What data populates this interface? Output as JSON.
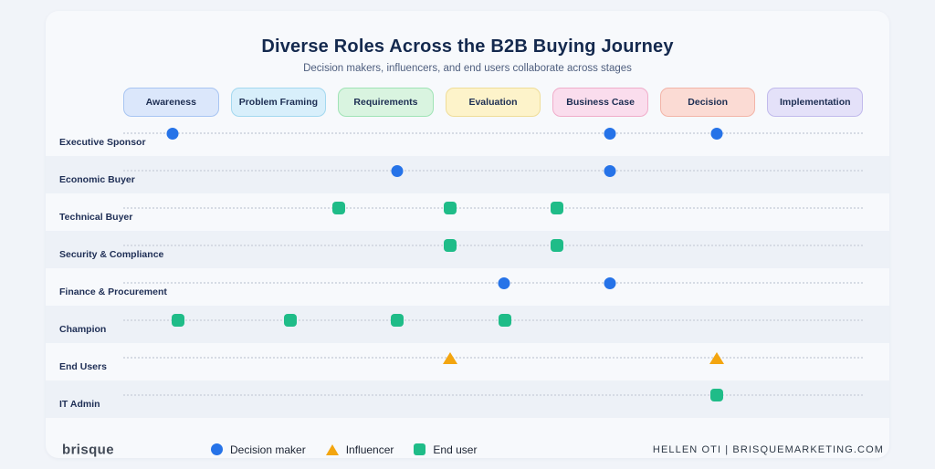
{
  "header": {
    "title": "Diverse Roles Across the B2B Buying Journey",
    "subtitle": "Decision makers, influencers, and end users collaborate across stages"
  },
  "stages": [
    {
      "label": "Awareness",
      "bg": "#dbe7fb",
      "border": "#a8c5f2"
    },
    {
      "label": "Problem Framing",
      "bg": "#d8effb",
      "border": "#a3d8ef"
    },
    {
      "label": "Requirements",
      "bg": "#d9f4e0",
      "border": "#a0e3b6"
    },
    {
      "label": "Evaluation",
      "bg": "#fdf3ca",
      "border": "#efdd98"
    },
    {
      "label": "Business Case",
      "bg": "#fadded",
      "border": "#f0adca"
    },
    {
      "label": "Decision",
      "bg": "#fbdbd4",
      "border": "#f2b4a8"
    },
    {
      "label": "Implementation",
      "bg": "#e4e1f9",
      "border": "#c1baec"
    }
  ],
  "marker_types": {
    "decision-maker": {
      "shape": "circle",
      "color": "#2673e8",
      "label": "Decision maker"
    },
    "influencer": {
      "shape": "triangle",
      "color": "#f3a50f",
      "label": "Influencer"
    },
    "end-user": {
      "shape": "square",
      "color": "#1fbc88",
      "label": "End user"
    }
  },
  "legend": [
    {
      "type": "decision-maker",
      "label": "Decision maker"
    },
    {
      "type": "influencer",
      "label": "Influencer"
    },
    {
      "type": "end-user",
      "label": "End user"
    }
  ],
  "footer": {
    "brand": "brisque",
    "credit": "HELLEN OTI | BRISQUEMARKETING.COM"
  },
  "chart_data": {
    "type": "scatter",
    "x_categories": [
      "Awareness",
      "Problem Framing",
      "Requirements",
      "Evaluation",
      "Business Case",
      "Decision",
      "Implementation"
    ],
    "y_categories": [
      "Executive Sponsor",
      "Economic Buyer",
      "Technical Buyer",
      "Security & Compliance",
      "Finance & Procurement",
      "Champion",
      "End Users",
      "IT Admin"
    ],
    "legend_position": "bottom",
    "grid": "dotted-row-lines",
    "rows": [
      {
        "label": "Executive Sponsor",
        "markers": [
          {
            "stage": "Awareness",
            "type": "decision-maker",
            "x_pct": 6.67
          },
          {
            "stage": "Business Case",
            "type": "decision-maker",
            "x_pct": 65.8
          },
          {
            "stage": "Decision",
            "type": "decision-maker",
            "x_pct": 80.25
          }
        ]
      },
      {
        "label": "Economic Buyer",
        "markers": [
          {
            "stage": "Requirements",
            "type": "decision-maker",
            "x_pct": 37.04
          },
          {
            "stage": "Business Case",
            "type": "decision-maker",
            "x_pct": 65.8
          }
        ]
      },
      {
        "label": "Technical Buyer",
        "markers": [
          {
            "stage": "Requirements",
            "type": "end-user",
            "x_pct": 29.14
          },
          {
            "stage": "Evaluation",
            "type": "end-user",
            "x_pct": 44.2
          },
          {
            "stage": "Business Case",
            "type": "end-user",
            "x_pct": 58.64
          }
        ]
      },
      {
        "label": "Security & Compliance",
        "markers": [
          {
            "stage": "Evaluation",
            "type": "end-user",
            "x_pct": 44.2
          },
          {
            "stage": "Business Case",
            "type": "end-user",
            "x_pct": 58.64
          }
        ]
      },
      {
        "label": "Finance & Procurement",
        "markers": [
          {
            "stage": "Evaluation",
            "type": "decision-maker",
            "x_pct": 51.48
          },
          {
            "stage": "Business Case",
            "type": "decision-maker",
            "x_pct": 65.8
          }
        ]
      },
      {
        "label": "Champion",
        "markers": [
          {
            "stage": "Awareness",
            "type": "end-user",
            "x_pct": 7.41
          },
          {
            "stage": "Problem Framing",
            "type": "end-user",
            "x_pct": 22.59
          },
          {
            "stage": "Requirements",
            "type": "end-user",
            "x_pct": 37.04
          },
          {
            "stage": "Evaluation",
            "type": "end-user",
            "x_pct": 51.6
          }
        ]
      },
      {
        "label": "End Users",
        "markers": [
          {
            "stage": "Evaluation",
            "type": "influencer",
            "x_pct": 44.2
          },
          {
            "stage": "Decision",
            "type": "influencer",
            "x_pct": 80.25
          }
        ]
      },
      {
        "label": "IT Admin",
        "markers": [
          {
            "stage": "Decision",
            "type": "end-user",
            "x_pct": 80.25
          }
        ]
      }
    ]
  }
}
